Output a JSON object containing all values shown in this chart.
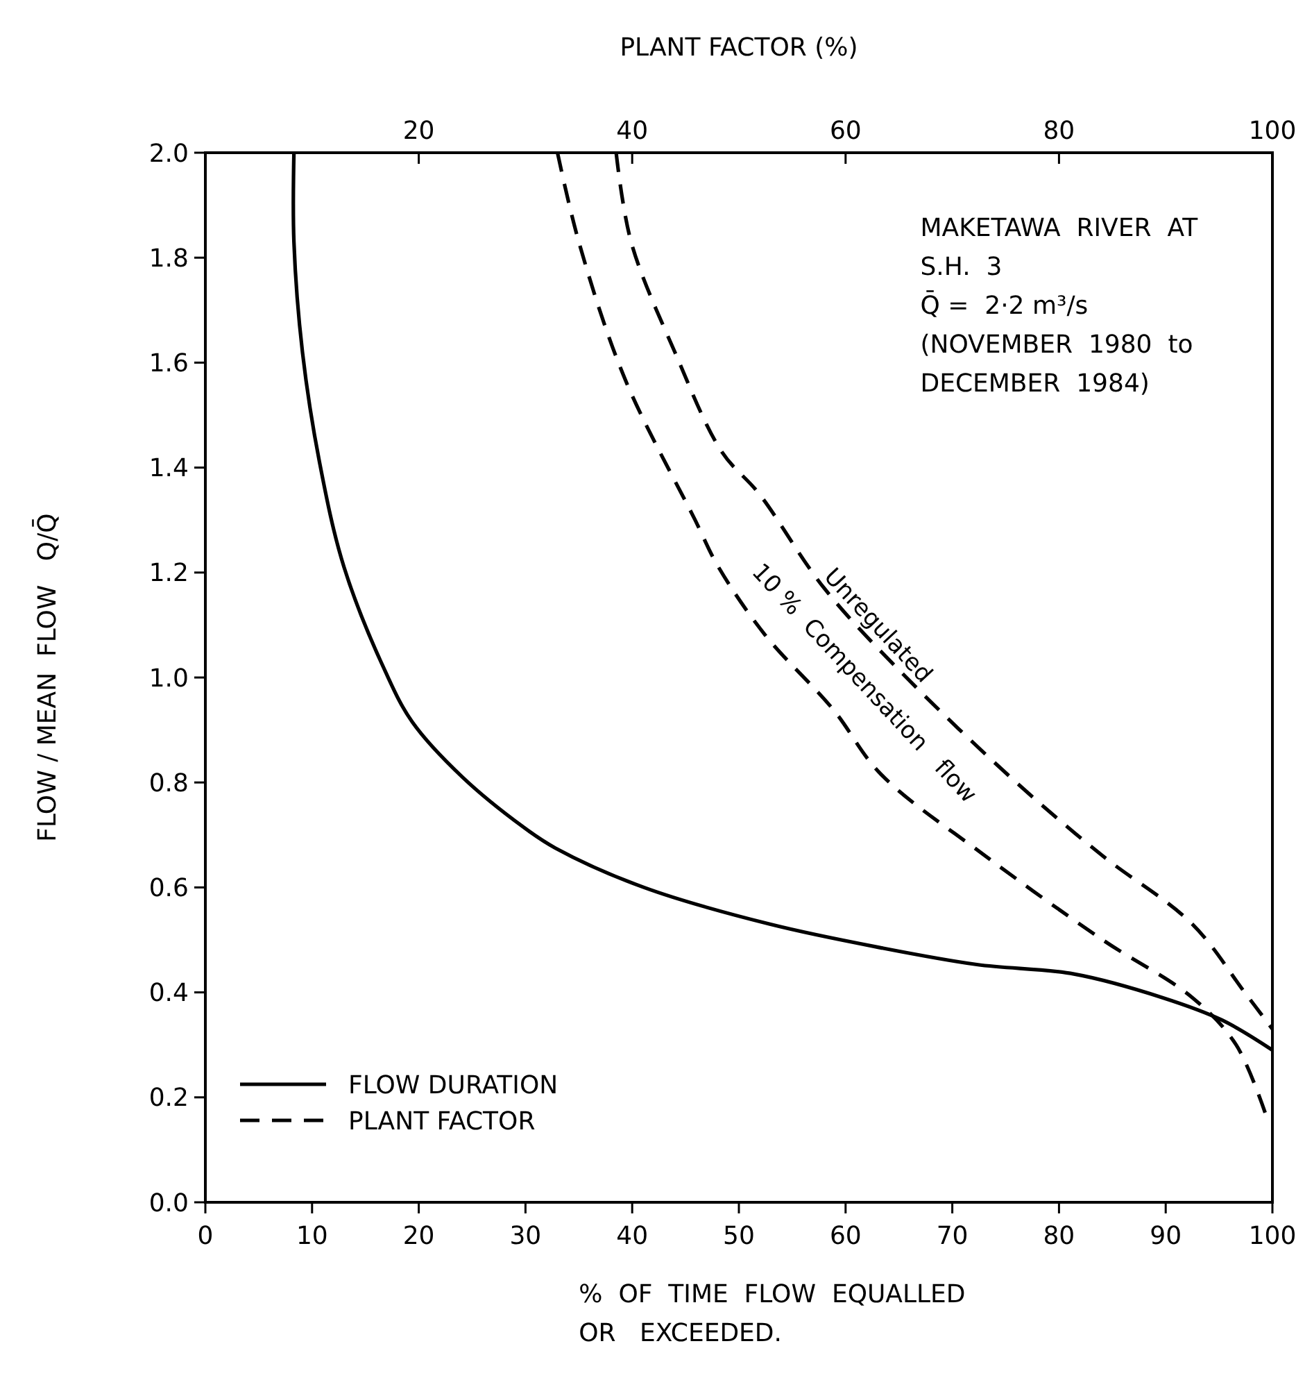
{
  "chart_data": {
    "type": "line",
    "xlabel": "%  OF  TIME  FLOW  EQUALLED\nOR   EXCEEDED.",
    "x2label": "PLANT  FACTOR  (%)",
    "ylabel": "FLOW / MEAN  FLOW   Q/Q̄",
    "xlim": [
      0,
      100
    ],
    "xticks": [
      0,
      10,
      20,
      30,
      40,
      50,
      60,
      70,
      80,
      90,
      100
    ],
    "x2lim": [
      0,
      100
    ],
    "x2ticks": [
      20,
      40,
      60,
      80,
      100
    ],
    "ylim": [
      0,
      2
    ],
    "yticks": [
      {
        "value": 0,
        "label": "0.0"
      },
      0.2,
      0.4,
      0.6,
      0.8,
      {
        "value": 1,
        "label": "1.0"
      },
      1.2,
      1.4,
      1.6,
      1.8,
      {
        "value": 2,
        "label": "2.0"
      }
    ],
    "grid": false,
    "legend": "bottom left",
    "marker": "none",
    "series": [
      {
        "name": "FLOW DURATION",
        "color": "#000000",
        "line_style": "solid",
        "x": [
          8.3,
          8.3,
          9.1,
          10.7,
          13.0,
          16.9,
          19.4,
          24.1,
          29.8,
          32.8,
          41.1,
          52.9,
          63.3,
          72.3,
          81.4,
          89.7,
          95.3,
          100
        ],
        "values": [
          2.0,
          1.83,
          1.62,
          1.41,
          1.21,
          1.01,
          0.915,
          0.81,
          0.715,
          0.675,
          0.6,
          0.53,
          0.485,
          0.453,
          0.435,
          0.39,
          0.347,
          0.29
        ]
      },
      {
        "name": "PLANT FACTOR",
        "color": "#000000",
        "line_style": "dashed",
        "x": [
          38.5,
          39.9,
          44,
          48.4,
          51.9,
          58,
          65.7,
          76,
          84.1,
          92.5,
          97.4,
          100
        ],
        "values": [
          2.0,
          1.83,
          1.62,
          1.43,
          1.35,
          1.17,
          1.0,
          0.8,
          0.66,
          0.53,
          0.4,
          0.33
        ]
      },
      {
        "color": "#000000",
        "line_style": "dashed",
        "x": [
          33.0,
          35,
          39.3,
          45.9,
          48.1,
          52.5,
          58.8,
          63.3,
          73.1,
          84.1,
          92.5,
          96.6,
          99.5
        ],
        "values": [
          2.0,
          1.83,
          1.57,
          1.3,
          1.21,
          1.08,
          0.94,
          0.816,
          0.66,
          0.5,
          0.39,
          0.3,
          0.16
        ]
      }
    ],
    "annotations": [
      "MAKETAWA  RIVER  AT\nS.H.  3\nQ̄ =  2·2 m³/s\n(NOVEMBER  1980  to\nDECEMBER  1984)",
      "Unregulated",
      "10 %  Compensation   flow"
    ]
  }
}
